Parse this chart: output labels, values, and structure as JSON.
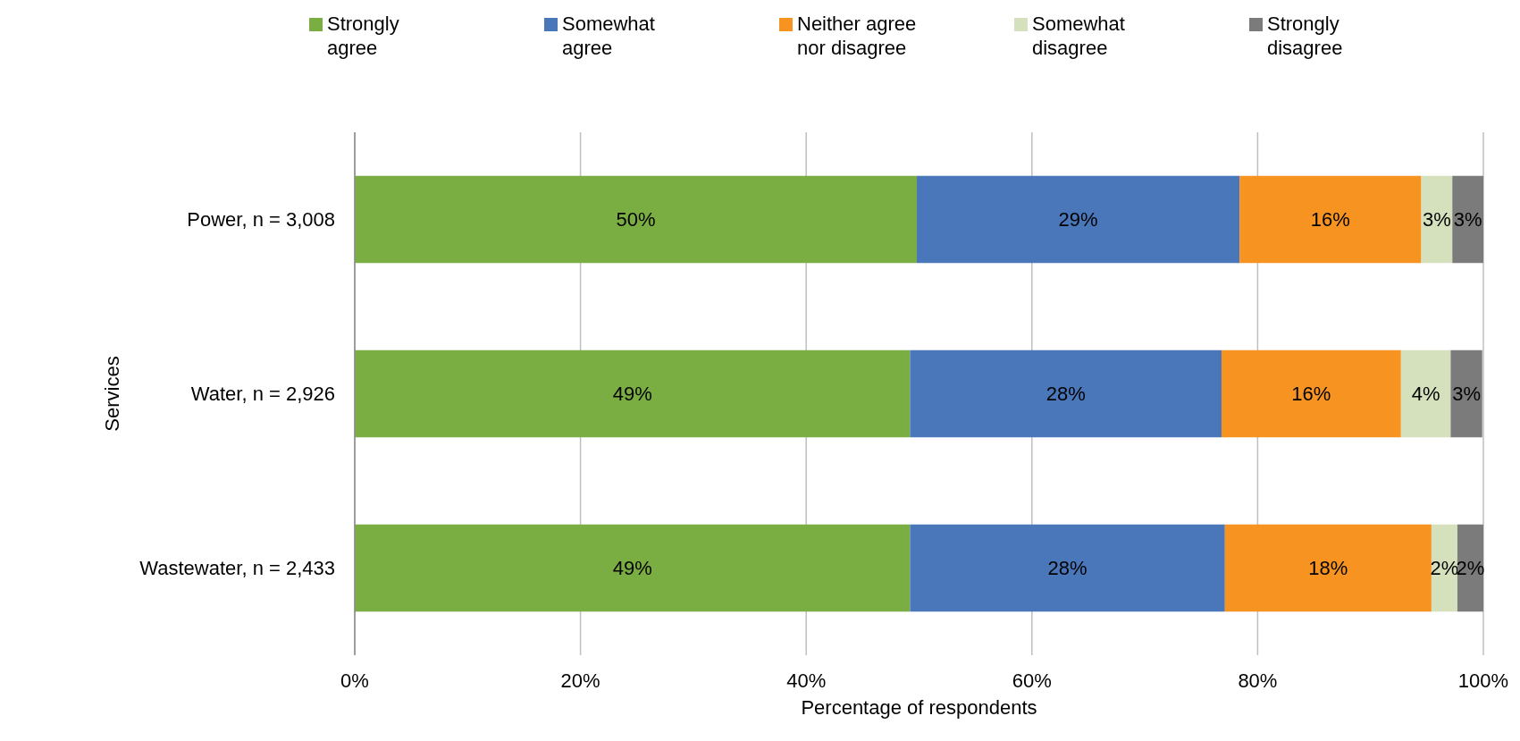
{
  "chart_data": {
    "type": "bar",
    "orientation": "horizontal",
    "stacked": true,
    "xlabel": "Percentage of respondents",
    "ylabel": "Services",
    "categories": [
      "Power, n = 3,008",
      "Water, n = 2,926",
      "Wastewater, n = 2,433"
    ],
    "series": [
      {
        "name": "Strongly agree",
        "color": "#7aad42",
        "values": [
          49.8,
          49.2,
          49.2
        ],
        "value_labels": [
          "50%",
          "49%",
          "49%"
        ]
      },
      {
        "name": "Somewhat agree",
        "color": "#4a77ba",
        "values": [
          28.6,
          27.6,
          27.9
        ],
        "value_labels": [
          "29%",
          "28%",
          "28%"
        ]
      },
      {
        "name": "Neither agree nor disagree",
        "color": "#f69321",
        "values": [
          16.1,
          15.9,
          18.3
        ],
        "value_labels": [
          "16%",
          "16%",
          "18%"
        ]
      },
      {
        "name": "Somewhat disagree",
        "color": "#d5e0bd",
        "values": [
          2.75,
          4.4,
          2.3
        ],
        "value_labels": [
          "3%",
          "4%",
          "2%"
        ]
      },
      {
        "name": "Strongly disagree",
        "color": "#7b7b7b",
        "values": [
          2.75,
          2.8,
          2.3
        ],
        "value_labels": [
          "3%",
          "3%",
          "2%"
        ]
      }
    ],
    "xlim": [
      0,
      100
    ],
    "xticks": [
      {
        "value": 0,
        "label": "0%"
      },
      {
        "value": 20,
        "label": "20%"
      },
      {
        "value": 40,
        "label": "40%"
      },
      {
        "value": 60,
        "label": "60%"
      },
      {
        "value": 80,
        "label": "80%"
      },
      {
        "value": 100,
        "label": "100%"
      }
    ],
    "grid": "x",
    "legend": "top"
  }
}
